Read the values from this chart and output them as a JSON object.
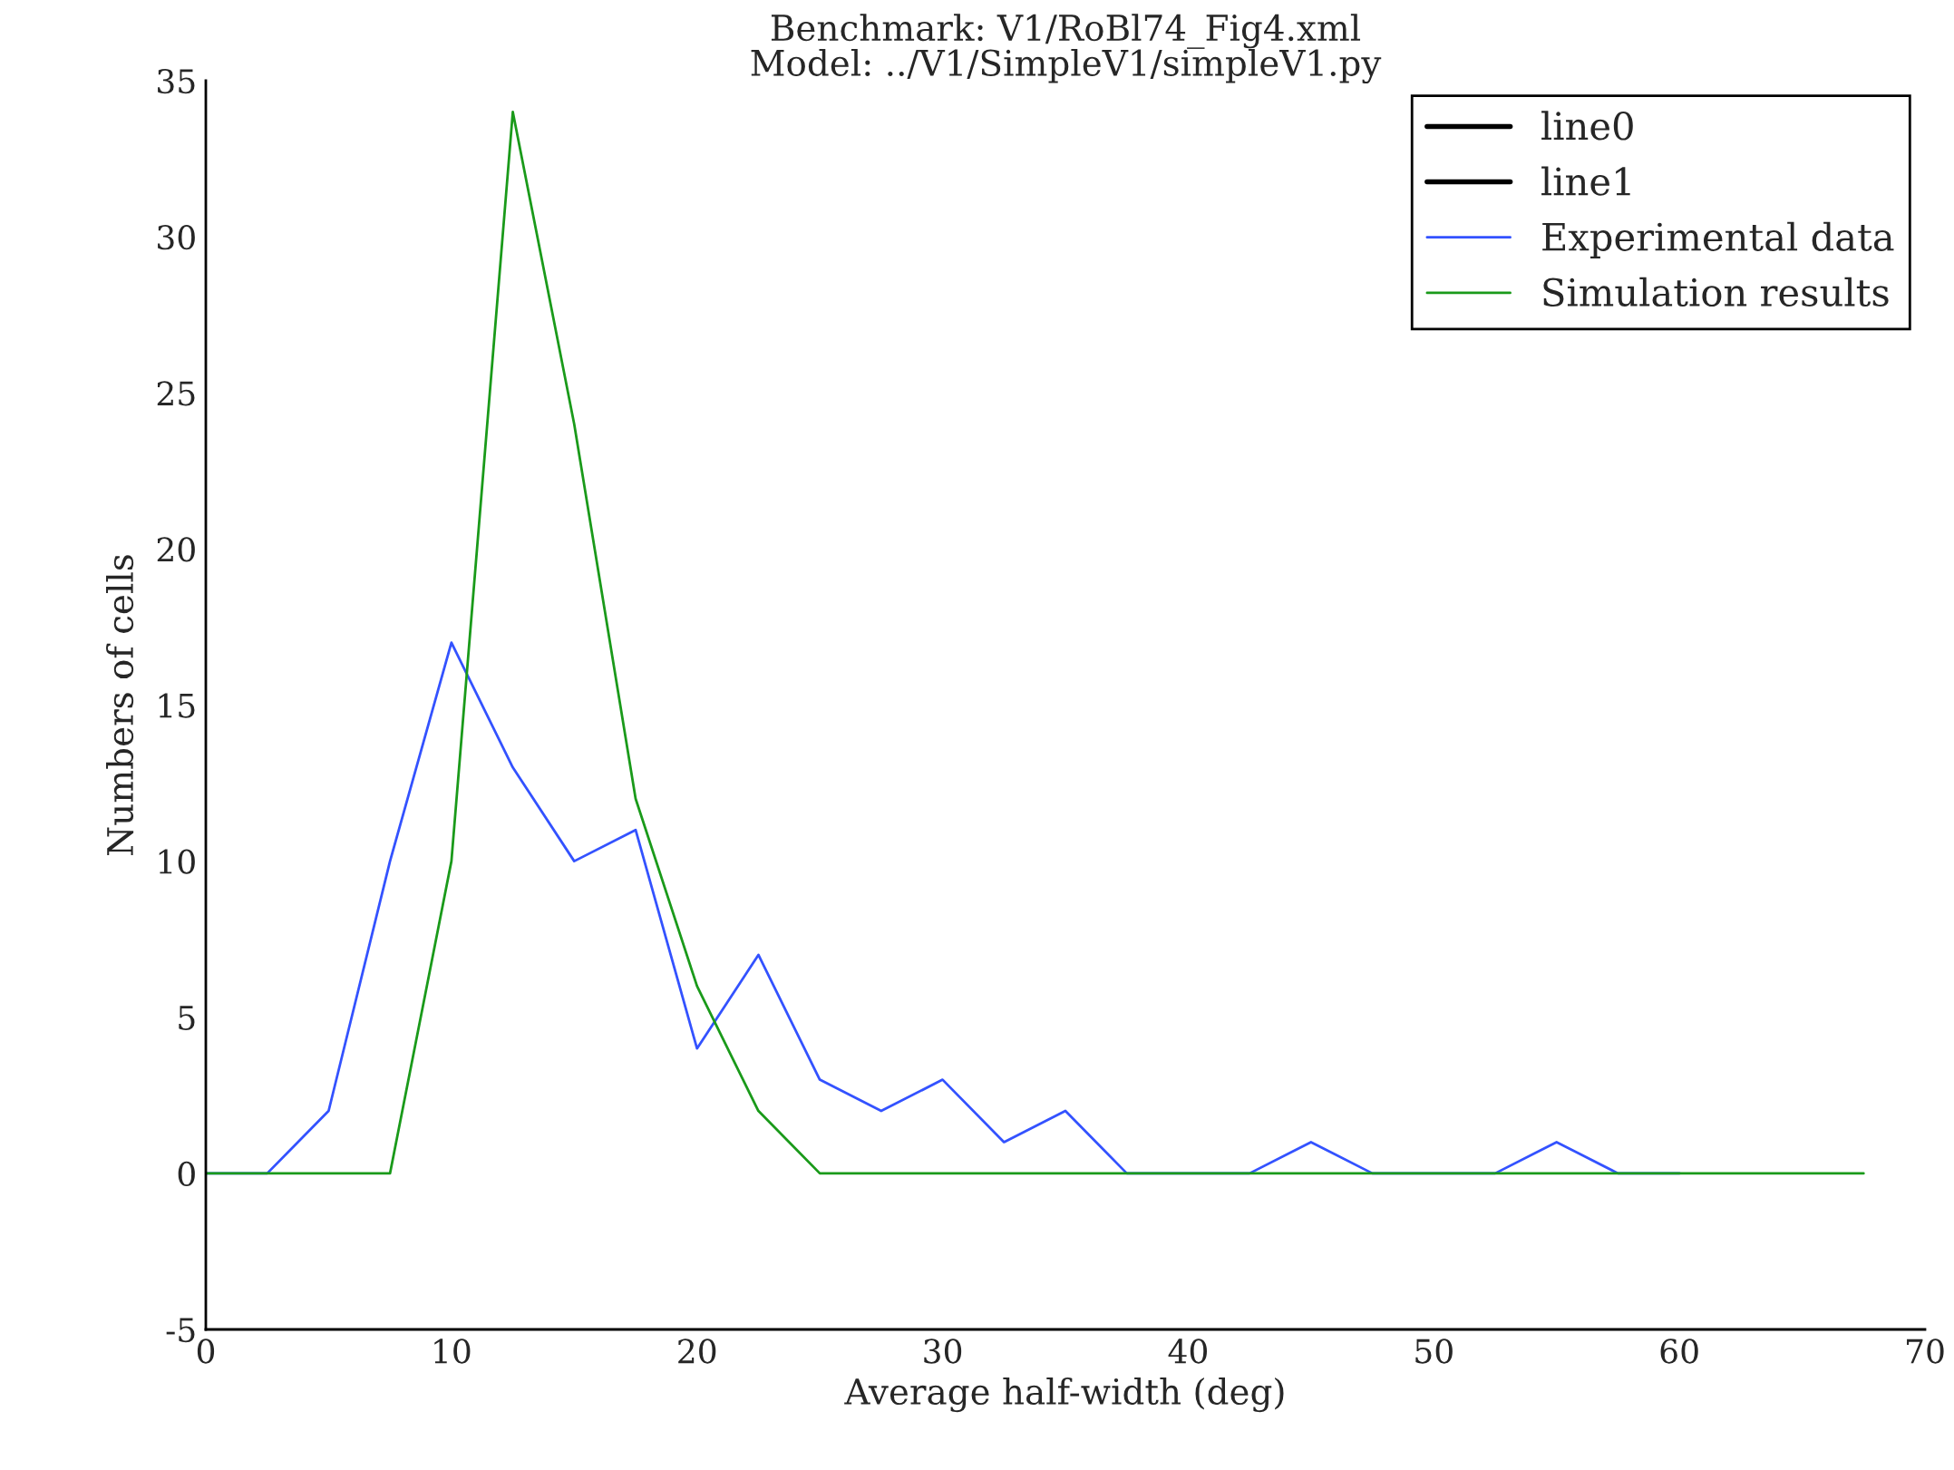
{
  "chart_data": {
    "type": "line",
    "title": "Benchmark: V1/RoBl74_Fig4.xml\nModel: ../V1/SimpleV1/simpleV1.py",
    "xlabel": "Average half-width (deg)",
    "ylabel": "Numbers of cells",
    "x": [
      0,
      2.5,
      5,
      7.5,
      10,
      12.5,
      15,
      17.5,
      20,
      22.5,
      25,
      27.5,
      30,
      32.5,
      35,
      37.5,
      40,
      42.5,
      45,
      47.5,
      50,
      52.5,
      55,
      57.5,
      60,
      62.5,
      65,
      67.5
    ],
    "series": [
      {
        "name": "line0",
        "color": "#000000",
        "values": [
          null,
          null,
          null,
          null,
          null,
          null,
          null,
          null,
          null,
          null,
          null,
          null,
          null,
          null,
          null,
          null,
          null,
          null,
          null,
          null,
          null,
          null,
          null,
          null,
          null,
          null,
          null,
          null
        ]
      },
      {
        "name": "line1",
        "color": "#000000",
        "values": [
          null,
          null,
          null,
          null,
          null,
          null,
          null,
          null,
          null,
          null,
          null,
          null,
          null,
          null,
          null,
          null,
          null,
          null,
          null,
          null,
          null,
          null,
          null,
          null,
          null,
          null,
          null,
          null
        ]
      },
      {
        "name": "Experimental data",
        "color": "#3352ff",
        "values": [
          0,
          0,
          2,
          10,
          17,
          13,
          10,
          11,
          4,
          7,
          3,
          2,
          3,
          1,
          2,
          0,
          0,
          0,
          1,
          0,
          0,
          0,
          1,
          0,
          0,
          null,
          null,
          null
        ]
      },
      {
        "name": "Simulation results",
        "color": "#1a9a1a",
        "values": [
          0,
          0,
          0,
          0,
          10,
          34,
          24,
          12,
          6,
          2,
          0,
          0,
          0,
          0,
          0,
          0,
          0,
          0,
          0,
          0,
          0,
          0,
          0,
          0,
          0,
          0,
          0,
          0
        ]
      }
    ],
    "xlim": [
      0,
      70
    ],
    "xticks": [
      0,
      10,
      20,
      30,
      40,
      50,
      60,
      70
    ],
    "ylim": [
      -5,
      35
    ],
    "yticks": [
      -5,
      0,
      5,
      10,
      15,
      20,
      25,
      30,
      35
    ],
    "legend": "top right",
    "grid": false
  }
}
